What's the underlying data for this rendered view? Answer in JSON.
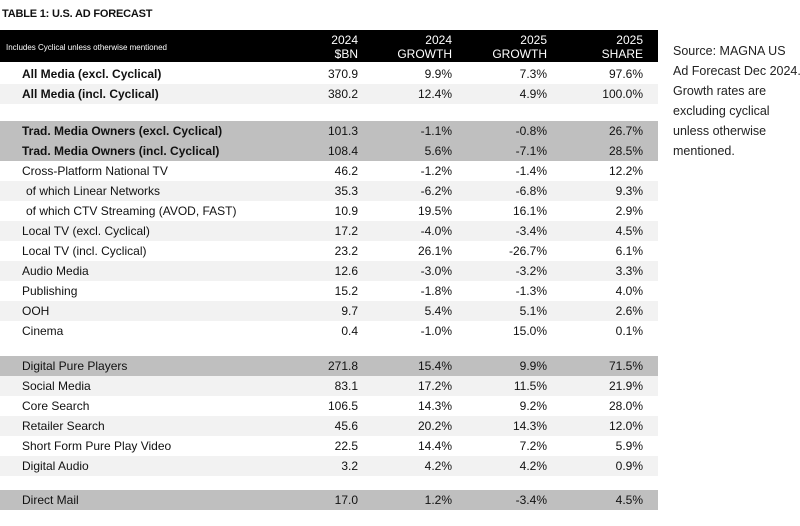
{
  "title": "TABLE 1: U.S. AD FORECAST",
  "source_note": "Source: MAGNA US Ad Forecast Dec 2024. Growth rates are excluding cyclical unless otherwise mentioned.",
  "table": {
    "header": [
      "Includes Cyclical unless otherwise mentioned",
      [
        "2024",
        "$BN"
      ],
      [
        "2024",
        "GROWTH"
      ],
      [
        "2025",
        "GROWTH"
      ],
      [
        "2025",
        "SHARE"
      ]
    ],
    "groups": [
      {
        "rows": [
          [
            "All Media (excl. Cyclical)",
            "370.9",
            "9.9%",
            "7.3%",
            "97.6%"
          ],
          [
            "All Media (incl. Cyclical)",
            "380.2",
            "12.4%",
            "4.9%",
            "100.0%"
          ]
        ]
      },
      {
        "rows": [
          [
            "Trad. Media Owners (excl. Cyclical)",
            "101.3",
            "-1.1%",
            "-0.8%",
            "26.7%"
          ],
          [
            "Trad. Media Owners (incl. Cyclical)",
            "108.4",
            "5.6%",
            "-7.1%",
            "28.5%"
          ],
          [
            "Cross-Platform National TV",
            "46.2",
            "-1.2%",
            "-1.4%",
            "12.2%"
          ],
          [
            "of which Linear Networks",
            "35.3",
            "-6.2%",
            "-6.8%",
            "9.3%"
          ],
          [
            "of which CTV Streaming (AVOD, FAST)",
            "10.9",
            "19.5%",
            "16.1%",
            "2.9%"
          ],
          [
            "Local TV (excl. Cyclical)",
            "17.2",
            "-4.0%",
            "-3.4%",
            "4.5%"
          ],
          [
            "Local TV (incl. Cyclical)",
            "23.2",
            "26.1%",
            "-26.7%",
            "6.1%"
          ],
          [
            "Audio Media",
            "12.6",
            "-3.0%",
            "-3.2%",
            "3.3%"
          ],
          [
            "Publishing",
            "15.2",
            "-1.8%",
            "-1.3%",
            "4.0%"
          ],
          [
            "OOH",
            "9.7",
            "5.4%",
            "5.1%",
            "2.6%"
          ],
          [
            "Cinema",
            "0.4",
            "-1.0%",
            "15.0%",
            "0.1%"
          ]
        ]
      },
      {
        "rows": [
          [
            "Digital Pure Players",
            "271.8",
            "15.4%",
            "9.9%",
            "71.5%"
          ],
          [
            "Social Media",
            "83.1",
            "17.2%",
            "11.5%",
            "21.9%"
          ],
          [
            "Core Search",
            "106.5",
            "14.3%",
            "9.2%",
            "28.0%"
          ],
          [
            "Retailer Search",
            "45.6",
            "20.2%",
            "14.3%",
            "12.0%"
          ],
          [
            "Short Form Pure Play Video",
            "22.5",
            "14.4%",
            "7.2%",
            "5.9%"
          ],
          [
            "Digital Audio",
            "3.2",
            "4.2%",
            "4.2%",
            "0.9%"
          ]
        ]
      },
      {
        "rows": [
          [
            "Direct Mail",
            "17.0",
            "1.2%",
            "-3.4%",
            "4.5%"
          ]
        ]
      }
    ]
  }
}
